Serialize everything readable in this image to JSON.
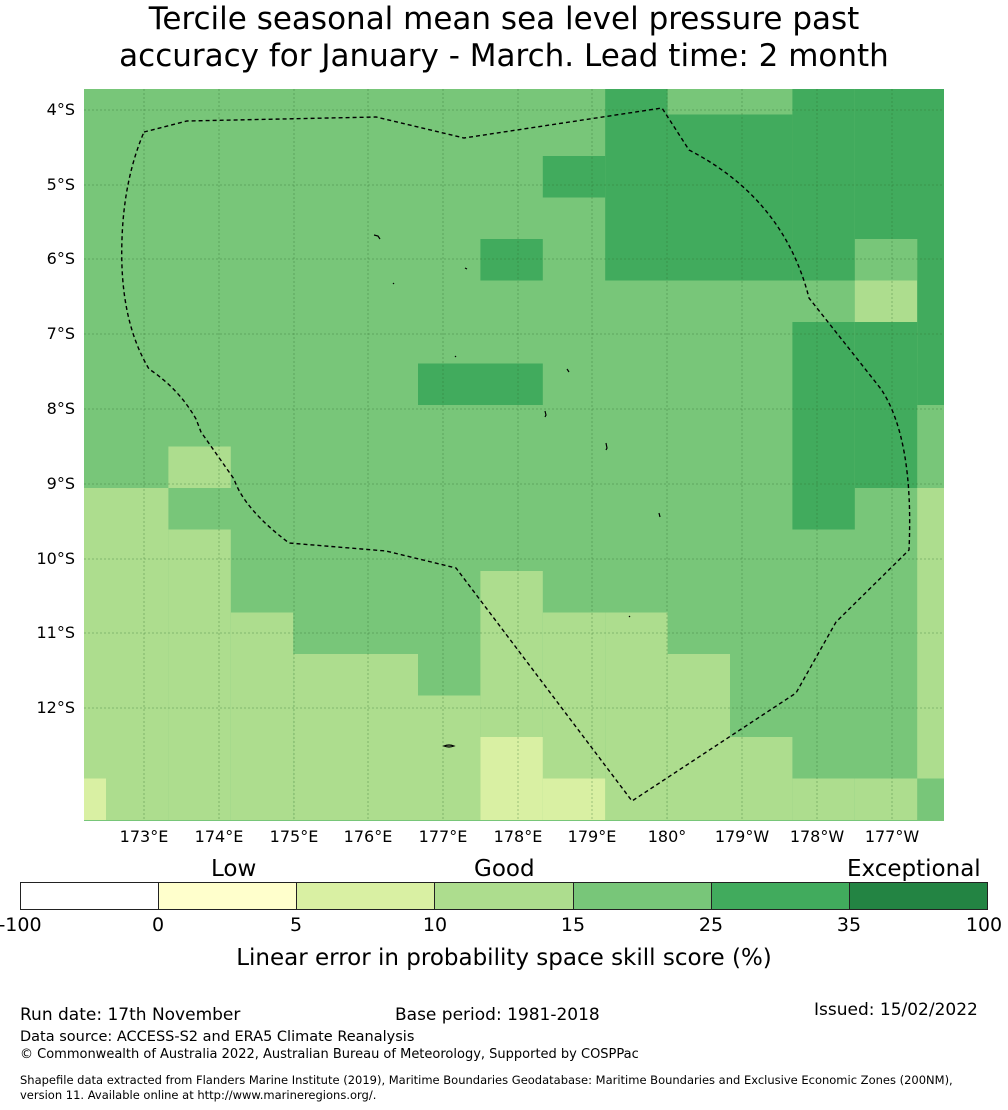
{
  "title": {
    "line1": "Tercile seasonal mean sea level pressure past",
    "line2": "accuracy for January - March. Lead time: 2 month"
  },
  "map": {
    "lat_labels": [
      "4°S",
      "5°S",
      "6°S",
      "7°S",
      "8°S",
      "9°S",
      "10°S",
      "11°S",
      "12°S"
    ],
    "lon_labels": [
      "173°E",
      "174°E",
      "175°E",
      "176°E",
      "177°E",
      "178°E",
      "179°E",
      "180°",
      "179°W",
      "178°W",
      "177°W"
    ],
    "colors": [
      "#ffffcc",
      "#d9f0a3",
      "#addd8e",
      "#78c679",
      "#41ab5d",
      "#238443"
    ],
    "eez_boundary": "dashed black line",
    "gridlines": true
  },
  "legend": {
    "categories": [
      "Low",
      "Good",
      "Exceptional"
    ],
    "ticks": [
      "-100",
      "0",
      "5",
      "10",
      "15",
      "25",
      "35",
      "100"
    ],
    "colors": [
      "#ffffff",
      "#ffffcc",
      "#d9f0a3",
      "#addd8e",
      "#78c679",
      "#41ab5d",
      "#238443"
    ],
    "label": "Linear error in probability space skill score (%)"
  },
  "footer": {
    "run_date": "Run date: 17th November",
    "base_period": "Base period: 1981-2018",
    "issued": "Issued: 15/02/2022",
    "data_source": "Data source: ACCESS-S2 and ERA5 Climate Reanalysis",
    "copyright": "© Commonwealth of Australia 2022, Australian Bureau of Meteorology, Supported by COSPPac",
    "shapefile_line1": "Shapefile data extracted from Flanders Marine Institute (2019), Maritime Boundaries Geodatabase: Maritime Boundaries and Exclusive Economic Zones (200NM),",
    "shapefile_line2": "version 11. Available online at http://www.marineregions.org/."
  }
}
